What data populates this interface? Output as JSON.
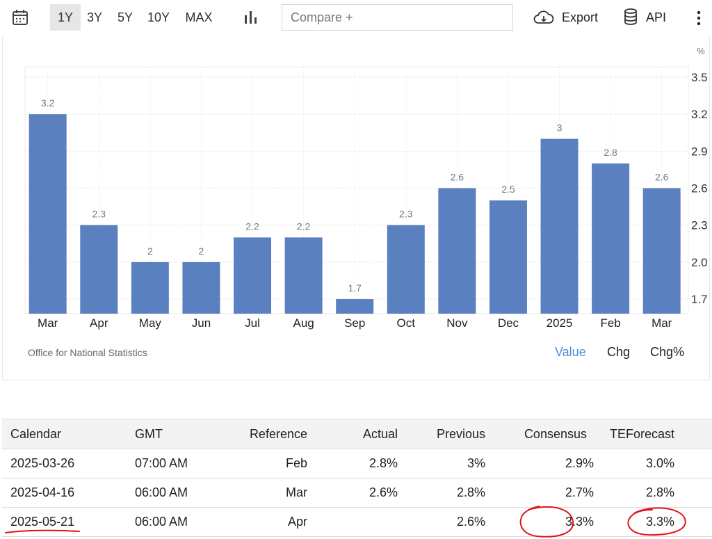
{
  "toolbar": {
    "ranges": [
      "1Y",
      "3Y",
      "5Y",
      "10Y",
      "MAX"
    ],
    "active_range": "1Y",
    "compare_placeholder": "Compare +",
    "export_label": "Export",
    "api_label": "API",
    "icons": [
      "calendar-icon",
      "bar-chart-icon",
      "cloud-download-icon",
      "database-icon",
      "more-vertical-icon"
    ]
  },
  "chart": {
    "unit_label": "%",
    "source": "Office for National Statistics",
    "modes": [
      "Value",
      "Chg",
      "Chg%"
    ],
    "active_mode": "Value"
  },
  "chart_data": {
    "type": "bar",
    "categories": [
      "Mar",
      "Apr",
      "May",
      "Jun",
      "Jul",
      "Aug",
      "Sep",
      "Oct",
      "Nov",
      "Dec",
      "2025",
      "Feb",
      "Mar"
    ],
    "values": [
      3.2,
      2.3,
      2,
      2,
      2.2,
      2.2,
      1.7,
      2.3,
      2.6,
      2.5,
      3,
      2.8,
      2.6
    ],
    "value_labels": [
      "3.2",
      "2.3",
      "2",
      "2",
      "2.2",
      "2.2",
      "1.7",
      "2.3",
      "2.6",
      "2.5",
      "3",
      "2.8",
      "2.6"
    ],
    "y_ticks": [
      "1.7",
      "2.0",
      "2.3",
      "2.6",
      "2.9",
      "3.2",
      "3.5"
    ],
    "ylim": [
      1.5,
      3.5
    ],
    "bar_color": "#5b80bf",
    "grid": true,
    "y_axis_side": "right"
  },
  "table": {
    "headers": [
      "Calendar",
      "GMT",
      "Reference",
      "Actual",
      "Previous",
      "Consensus",
      "TEForecast"
    ],
    "rows": [
      [
        "2025-03-26",
        "07:00 AM",
        "Feb",
        "2.8%",
        "3%",
        "2.9%",
        "3.0%"
      ],
      [
        "2025-04-16",
        "06:00 AM",
        "Mar",
        "2.6%",
        "2.8%",
        "2.7%",
        "2.8%"
      ],
      [
        "2025-05-21",
        "06:00 AM",
        "Apr",
        "",
        "2.6%",
        "3.3%",
        "3.3%"
      ]
    ]
  },
  "colors": {
    "accent": "#4a8fd6",
    "annotation": "#e0141b",
    "header_bg": "#f3f3f3"
  }
}
